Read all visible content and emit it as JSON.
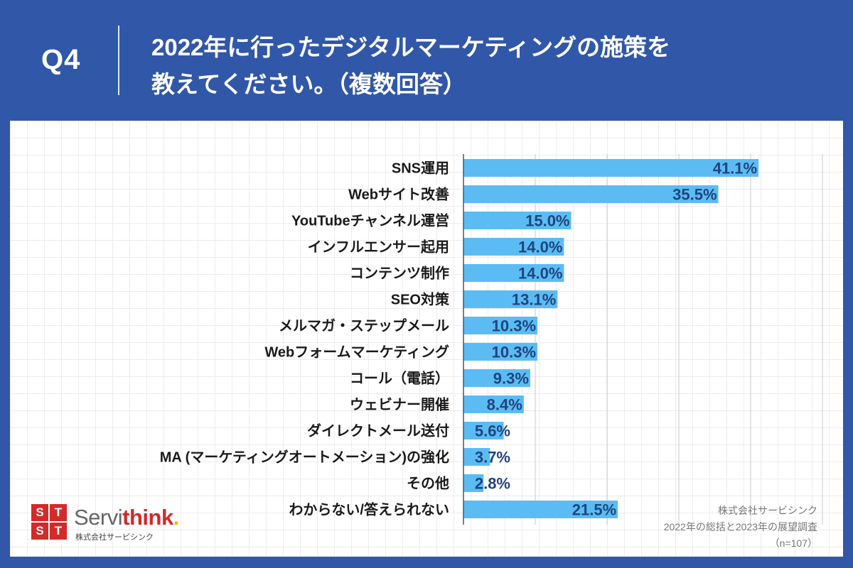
{
  "header": {
    "question_number": "Q4",
    "title_line1": "2022年に行ったデジタルマーケティングの施策を",
    "title_line2": "教えてください。（複数回答）"
  },
  "logo": {
    "mark_letters": [
      "S",
      "T",
      "S",
      "T"
    ],
    "name_gray": "Servi",
    "name_red": "think",
    "name_dot": ".",
    "subtitle": "株式会社サービシンク"
  },
  "source": {
    "company": "株式会社サービシンク",
    "survey": "2022年の総括と2023年の展望調査",
    "sample": "（n=107）"
  },
  "colors": {
    "background": "#3157a8",
    "bar": "#5bbcf4",
    "value_text": "#20447e",
    "logo_red": "#d32a2a"
  },
  "chart_data": {
    "type": "bar",
    "orientation": "horizontal",
    "categories": [
      "SNS運用",
      "Webサイト改善",
      "YouTubeチャンネル運営",
      "インフルエンサー起用",
      "コンテンツ制作",
      "SEO対策",
      "メルマガ・ステップメール",
      "Webフォームマーケティング",
      "コール（電話）",
      "ウェビナー開催",
      "ダイレクトメール送付",
      "MA (マーケティングオートメーション)の強化",
      "その他",
      "わからない/答えられない"
    ],
    "values": [
      41.1,
      35.5,
      15.0,
      14.0,
      14.0,
      13.1,
      10.3,
      10.3,
      9.3,
      8.4,
      5.6,
      3.7,
      2.8,
      21.5
    ],
    "value_labels": [
      "41.1%",
      "35.5%",
      "15.0%",
      "14.0%",
      "14.0%",
      "13.1%",
      "10.3%",
      "10.3%",
      "9.3%",
      "8.4%",
      "5.6%",
      "3.7%",
      "2.8%",
      "21.5%"
    ],
    "xlim": [
      0,
      50
    ],
    "grid": true,
    "legend": "none"
  }
}
